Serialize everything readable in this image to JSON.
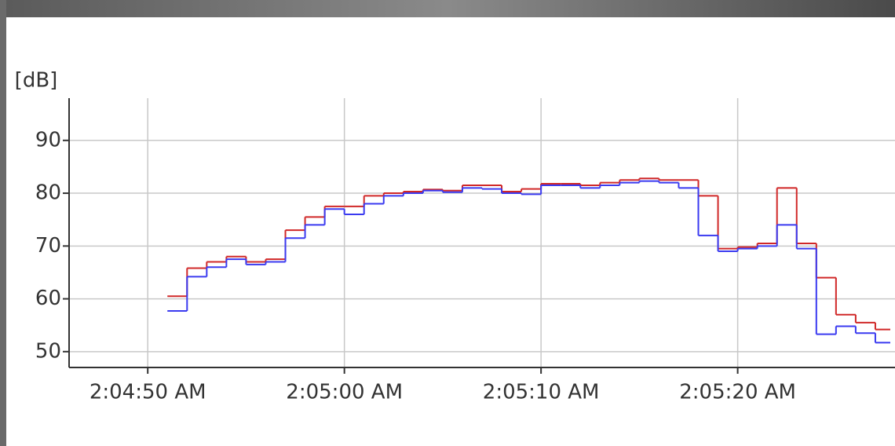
{
  "chart_data": {
    "type": "step",
    "y_label": "[dB]",
    "x": [
      "2:04:51 AM",
      "2:04:52 AM",
      "2:04:53 AM",
      "2:04:54 AM",
      "2:04:55 AM",
      "2:04:56 AM",
      "2:04:57 AM",
      "2:04:58 AM",
      "2:04:59 AM",
      "2:05:00 AM",
      "2:05:01 AM",
      "2:05:02 AM",
      "2:05:03 AM",
      "2:05:04 AM",
      "2:05:05 AM",
      "2:05:06 AM",
      "2:05:07 AM",
      "2:05:08 AM",
      "2:05:09 AM",
      "2:05:10 AM",
      "2:05:11 AM",
      "2:05:12 AM",
      "2:05:13 AM",
      "2:05:14 AM",
      "2:05:15 AM",
      "2:05:16 AM",
      "2:05:17 AM",
      "2:05:18 AM",
      "2:05:19 AM",
      "2:05:20 AM",
      "2:05:21 AM",
      "2:05:22 AM",
      "2:05:23 AM",
      "2:05:24 AM",
      "2:05:25 AM",
      "2:05:26 AM",
      "2:05:27 AM"
    ],
    "series": [
      {
        "color": "#d02828",
        "values": [
          60.5,
          65.8,
          67,
          68,
          67,
          67.5,
          73,
          75.5,
          77.5,
          77.5,
          79.5,
          80,
          80.3,
          80.7,
          80.5,
          81.5,
          81.5,
          80.3,
          80.8,
          81.8,
          81.8,
          81.5,
          82,
          82.5,
          82.8,
          82.5,
          82.5,
          79.5,
          69.5,
          69.8,
          70.5,
          81,
          70.5,
          64,
          57,
          55.5,
          54.2
        ]
      },
      {
        "color": "#3a3af0",
        "values": [
          57.7,
          64.2,
          66,
          67.5,
          66.5,
          67,
          71.5,
          74,
          77,
          76,
          78,
          79.5,
          80,
          80.5,
          80.2,
          81,
          80.8,
          80,
          79.8,
          81.5,
          81.5,
          81,
          81.5,
          82,
          82.3,
          82,
          81,
          72,
          69,
          69.5,
          70,
          74,
          69.5,
          53.3,
          54.8,
          53.5,
          51.7
        ]
      }
    ],
    "xlim": [
      "2:04:46 AM",
      "2:05:28 AM"
    ],
    "xticks": [
      "2:04:50 AM",
      "2:05:00 AM",
      "2:05:10 AM",
      "2:05:20 AM"
    ],
    "ylim": [
      47,
      98
    ],
    "yticks": [
      50,
      60,
      70,
      80,
      90
    ],
    "grid": true
  }
}
